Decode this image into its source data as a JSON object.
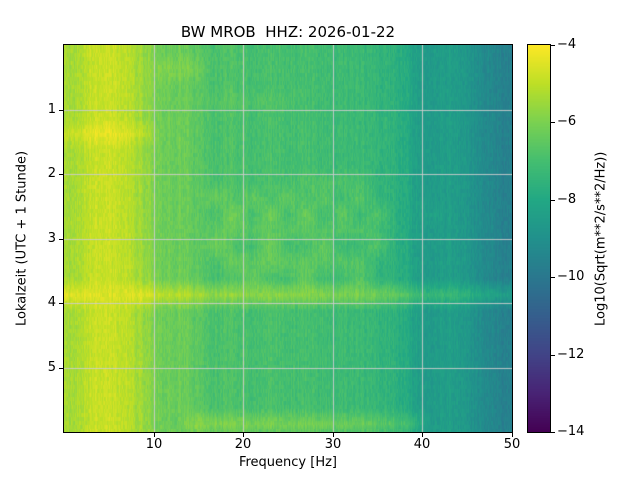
{
  "chart_data": {
    "type": "heatmap",
    "title": "BW MROB  HHZ: 2026-01-22",
    "xlabel": "Frequency [Hz]",
    "ylabel": "Lokalzeit (UTC + 1 Stunde)",
    "colorbar_label": "Log10(Sqrt(m**2/s**2/Hz))",
    "colormap": "viridis",
    "grid": "on",
    "grid_color": "#c8c8c8",
    "x_range": [
      0,
      50
    ],
    "y_range": [
      0,
      6
    ],
    "value_range": [
      -14,
      -4
    ],
    "x_tick_values": [
      10,
      20,
      30,
      40,
      50
    ],
    "x_tick_labels": [
      "10",
      "20",
      "30",
      "40",
      "50"
    ],
    "y_tick_values": [
      1,
      2,
      3,
      4,
      5
    ],
    "y_tick_labels": [
      "1",
      "2",
      "3",
      "4",
      "5"
    ],
    "colorbar_tick_values": [
      -4,
      -6,
      -8,
      -10,
      -12,
      -14
    ],
    "colorbar_tick_labels": [
      "−4",
      "−6",
      "−8",
      "−10",
      "−12",
      "−14"
    ],
    "freqs_hz": [
      1,
      3,
      5,
      7,
      9,
      11,
      13,
      15,
      17,
      19,
      21,
      23,
      25,
      27,
      29,
      31,
      33,
      35,
      37,
      39,
      41,
      43,
      45,
      47,
      49
    ],
    "times_h": [
      0.125,
      0.375,
      0.625,
      0.875,
      1.125,
      1.375,
      1.625,
      1.875,
      2.125,
      2.375,
      2.625,
      2.875,
      3.125,
      3.375,
      3.625,
      3.875,
      4.125,
      4.375,
      4.625,
      4.875,
      5.125,
      5.375,
      5.625,
      5.875
    ],
    "values": [
      [
        -5.4,
        -4.9,
        -4.8,
        -5.0,
        -5.6,
        -6.3,
        -6.2,
        -6.6,
        -6.9,
        -6.8,
        -7.0,
        -6.9,
        -7.0,
        -7.0,
        -7.1,
        -7.2,
        -7.2,
        -7.4,
        -7.6,
        -8.2,
        -8.6,
        -8.4,
        -8.8,
        -9.2,
        -9.6
      ],
      [
        -5.4,
        -4.9,
        -4.8,
        -5.0,
        -5.6,
        -6.0,
        -5.9,
        -6.3,
        -6.9,
        -6.8,
        -7.0,
        -6.9,
        -7.0,
        -7.0,
        -7.1,
        -7.2,
        -7.2,
        -7.4,
        -7.6,
        -8.2,
        -8.6,
        -8.4,
        -8.8,
        -9.2,
        -9.6
      ],
      [
        -5.4,
        -4.9,
        -4.8,
        -5.0,
        -5.6,
        -6.3,
        -6.2,
        -6.6,
        -6.9,
        -6.8,
        -7.0,
        -6.9,
        -7.0,
        -7.0,
        -7.1,
        -7.2,
        -7.2,
        -7.4,
        -7.6,
        -8.2,
        -8.6,
        -8.4,
        -8.8,
        -9.2,
        -9.6
      ],
      [
        -5.4,
        -4.9,
        -4.8,
        -5.0,
        -5.6,
        -6.3,
        -6.2,
        -6.6,
        -6.7,
        -6.6,
        -6.8,
        -6.7,
        -6.8,
        -7.0,
        -7.1,
        -7.2,
        -7.2,
        -7.4,
        -7.6,
        -8.2,
        -8.6,
        -8.4,
        -8.8,
        -9.2,
        -9.6
      ],
      [
        -5.4,
        -4.9,
        -4.8,
        -5.0,
        -5.6,
        -6.3,
        -6.2,
        -6.6,
        -6.9,
        -6.8,
        -7.0,
        -6.9,
        -7.0,
        -7.0,
        -7.1,
        -7.2,
        -7.2,
        -7.4,
        -7.6,
        -8.2,
        -8.6,
        -8.4,
        -8.8,
        -9.2,
        -9.6
      ],
      [
        -4.9,
        -4.4,
        -4.3,
        -4.5,
        -5.1,
        -6.3,
        -6.2,
        -6.6,
        -6.9,
        -6.8,
        -7.0,
        -6.9,
        -7.0,
        -7.0,
        -7.1,
        -7.2,
        -7.2,
        -7.4,
        -7.6,
        -8.2,
        -8.6,
        -8.4,
        -8.8,
        -9.2,
        -9.6
      ],
      [
        -5.4,
        -4.9,
        -4.8,
        -5.0,
        -5.6,
        -6.3,
        -6.2,
        -6.6,
        -6.9,
        -6.8,
        -7.0,
        -6.9,
        -7.0,
        -7.0,
        -7.1,
        -7.2,
        -7.2,
        -7.4,
        -7.6,
        -8.2,
        -8.6,
        -8.4,
        -8.8,
        -9.2,
        -9.6
      ],
      [
        -5.4,
        -4.9,
        -4.8,
        -5.0,
        -5.6,
        -6.3,
        -6.2,
        -6.6,
        -6.9,
        -6.8,
        -7.0,
        -6.9,
        -7.0,
        -7.0,
        -7.1,
        -7.2,
        -7.2,
        -7.4,
        -7.6,
        -8.2,
        -8.6,
        -8.4,
        -8.8,
        -9.2,
        -9.6
      ],
      [
        -5.4,
        -4.9,
        -4.8,
        -5.0,
        -5.6,
        -6.3,
        -6.2,
        -6.6,
        -6.9,
        -6.8,
        -7.0,
        -6.9,
        -7.0,
        -6.7,
        -6.8,
        -6.9,
        -6.9,
        -7.4,
        -7.6,
        -8.2,
        -8.6,
        -8.4,
        -8.8,
        -9.2,
        -9.6
      ],
      [
        -5.4,
        -4.9,
        -4.8,
        -5.0,
        -5.6,
        -6.3,
        -6.2,
        -6.6,
        -6.3,
        -6.8,
        -6.4,
        -6.9,
        -6.4,
        -7.0,
        -6.5,
        -7.2,
        -6.6,
        -7.4,
        -7.6,
        -8.2,
        -8.6,
        -8.4,
        -8.8,
        -9.2,
        -9.6
      ],
      [
        -5.4,
        -4.9,
        -4.8,
        -5.0,
        -5.6,
        -6.3,
        -6.2,
        -6.6,
        -6.9,
        -6.1,
        -7.0,
        -6.2,
        -7.0,
        -6.3,
        -7.1,
        -6.5,
        -7.2,
        -6.7,
        -7.6,
        -8.2,
        -8.3,
        -8.4,
        -8.8,
        -9.2,
        -9.6
      ],
      [
        -5.4,
        -4.9,
        -4.8,
        -5.0,
        -5.6,
        -6.3,
        -6.2,
        -6.6,
        -6.5,
        -6.4,
        -6.6,
        -6.5,
        -6.6,
        -6.6,
        -6.7,
        -6.8,
        -6.8,
        -7.0,
        -7.6,
        -8.2,
        -8.6,
        -8.4,
        -8.8,
        -9.2,
        -9.6
      ],
      [
        -5.4,
        -4.9,
        -4.8,
        -5.0,
        -5.6,
        -6.3,
        -6.2,
        -6.6,
        -6.2,
        -6.8,
        -7.0,
        -6.2,
        -7.0,
        -7.0,
        -6.4,
        -7.2,
        -7.2,
        -6.7,
        -7.6,
        -8.2,
        -8.6,
        -8.4,
        -8.8,
        -9.2,
        -9.6
      ],
      [
        -5.4,
        -4.9,
        -4.8,
        -5.0,
        -5.6,
        -6.3,
        -6.2,
        -6.6,
        -6.9,
        -6.3,
        -6.5,
        -6.4,
        -6.5,
        -6.5,
        -6.6,
        -6.7,
        -6.7,
        -7.4,
        -7.6,
        -8.2,
        -8.6,
        -8.4,
        -8.8,
        -9.2,
        -9.6
      ],
      [
        -5.4,
        -4.9,
        -4.8,
        -5.0,
        -5.6,
        -6.3,
        -6.2,
        -6.6,
        -6.9,
        -6.8,
        -6.4,
        -6.9,
        -7.0,
        -6.4,
        -7.1,
        -7.2,
        -6.6,
        -7.4,
        -7.6,
        -8.2,
        -8.6,
        -8.4,
        -8.8,
        -9.2,
        -9.6
      ],
      [
        -4.5,
        -4.5,
        -4.5,
        -4.5,
        -4.5,
        -5.1,
        -5.0,
        -5.4,
        -5.7,
        -5.6,
        -5.8,
        -5.7,
        -5.8,
        -5.8,
        -5.9,
        -6.0,
        -6.0,
        -6.2,
        -6.4,
        -7.0,
        -7.4,
        -7.2,
        -7.6,
        -8.0,
        -8.4
      ],
      [
        -5.4,
        -4.9,
        -4.8,
        -5.0,
        -5.6,
        -6.3,
        -6.2,
        -6.6,
        -6.9,
        -6.8,
        -7.0,
        -6.9,
        -7.0,
        -7.0,
        -7.1,
        -7.2,
        -7.2,
        -7.4,
        -7.6,
        -8.2,
        -8.6,
        -8.4,
        -8.8,
        -9.2,
        -9.6
      ],
      [
        -5.4,
        -4.9,
        -4.8,
        -5.0,
        -5.6,
        -6.3,
        -6.2,
        -6.6,
        -6.9,
        -6.8,
        -7.0,
        -6.9,
        -7.0,
        -7.0,
        -7.1,
        -7.2,
        -7.2,
        -7.4,
        -7.6,
        -8.2,
        -8.6,
        -8.4,
        -8.8,
        -9.2,
        -9.6
      ],
      [
        -5.4,
        -4.9,
        -4.8,
        -5.0,
        -5.6,
        -6.3,
        -6.2,
        -6.6,
        -6.9,
        -6.8,
        -7.0,
        -6.9,
        -7.0,
        -7.0,
        -7.1,
        -7.2,
        -7.2,
        -7.4,
        -7.6,
        -8.2,
        -8.6,
        -8.4,
        -8.8,
        -9.2,
        -9.6
      ],
      [
        -5.4,
        -4.9,
        -4.8,
        -5.0,
        -5.6,
        -6.3,
        -6.2,
        -6.6,
        -6.9,
        -6.8,
        -7.0,
        -6.9,
        -7.0,
        -7.0,
        -7.1,
        -7.2,
        -7.2,
        -7.4,
        -7.6,
        -8.2,
        -8.6,
        -8.4,
        -8.8,
        -9.2,
        -9.6
      ],
      [
        -5.4,
        -4.9,
        -4.8,
        -5.0,
        -5.6,
        -6.3,
        -6.2,
        -6.6,
        -6.9,
        -6.8,
        -7.0,
        -6.9,
        -7.0,
        -7.0,
        -7.1,
        -7.2,
        -7.2,
        -7.4,
        -7.6,
        -8.2,
        -8.6,
        -8.4,
        -8.8,
        -9.2,
        -9.6
      ],
      [
        -5.4,
        -4.9,
        -4.8,
        -5.0,
        -5.6,
        -6.3,
        -6.2,
        -6.6,
        -6.9,
        -6.8,
        -7.0,
        -6.9,
        -7.0,
        -7.0,
        -7.1,
        -7.2,
        -7.2,
        -7.4,
        -7.6,
        -8.2,
        -8.6,
        -8.4,
        -8.8,
        -9.2,
        -9.6
      ],
      [
        -5.4,
        -4.9,
        -4.8,
        -5.0,
        -5.6,
        -6.3,
        -6.2,
        -6.6,
        -6.9,
        -6.8,
        -7.0,
        -6.9,
        -7.0,
        -7.0,
        -7.1,
        -7.2,
        -7.2,
        -7.4,
        -7.6,
        -8.2,
        -8.6,
        -8.4,
        -8.8,
        -9.2,
        -9.6
      ],
      [
        -5.4,
        -4.9,
        -4.8,
        -5.0,
        -5.6,
        -6.3,
        -6.2,
        -5.7,
        -6.0,
        -5.9,
        -6.1,
        -6.0,
        -6.1,
        -6.1,
        -6.2,
        -6.3,
        -6.3,
        -6.5,
        -6.7,
        -7.3,
        -8.6,
        -8.4,
        -8.8,
        -9.2,
        -9.6
      ],
      [
        -5.4,
        -4.9,
        -4.8,
        -5.0,
        -5.6,
        -6.3,
        -6.2,
        -6.6,
        -6.9,
        -6.8,
        -7.0,
        -6.9,
        -7.0,
        -7.0,
        -7.1,
        -7.2,
        -7.2,
        -7.4,
        -7.6,
        -8.2,
        -8.6,
        -8.4,
        -8.8,
        -9.2,
        -9.6
      ]
    ]
  }
}
